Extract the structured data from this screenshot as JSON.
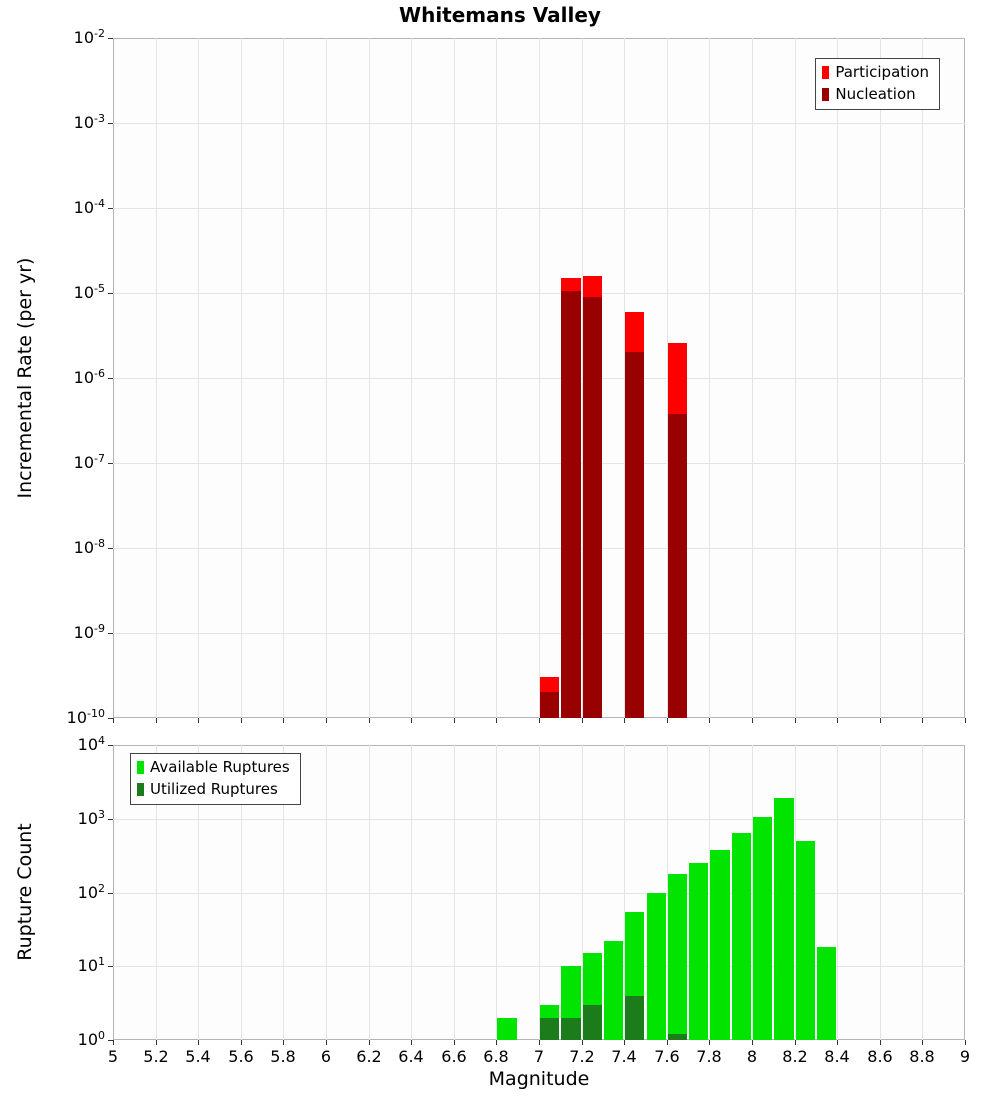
{
  "title": "Whitemans Valley",
  "colors": {
    "background": "#ffffff",
    "plot_background": "#fdfdfd",
    "gridline": "#e4e4e4",
    "axis_border": "#b5b5b5"
  },
  "chart_data": [
    {
      "type": "bar",
      "title": "Whitemans Valley",
      "ylabel": "Incremental Rate (per yr)",
      "xlabel": "",
      "yscale": "log",
      "ylim": [
        1e-10,
        0.01
      ],
      "xlim": [
        5,
        9
      ],
      "bin_width": 0.1,
      "grid": true,
      "y_tick_exponents": [
        -2,
        -3,
        -4,
        -5,
        -6,
        -7,
        -8,
        -9,
        -10
      ],
      "x_ticks": [
        {
          "v": 5,
          "label": "5"
        },
        {
          "v": 5.2,
          "label": "5.2"
        },
        {
          "v": 5.4,
          "label": "5.4"
        },
        {
          "v": 5.6,
          "label": "5.6"
        },
        {
          "v": 5.8,
          "label": "5.8"
        },
        {
          "v": 6,
          "label": "6"
        },
        {
          "v": 6.2,
          "label": "6.2"
        },
        {
          "v": 6.4,
          "label": "6.4"
        },
        {
          "v": 6.6,
          "label": "6.6"
        },
        {
          "v": 6.8,
          "label": "6.8"
        },
        {
          "v": 7,
          "label": "7"
        },
        {
          "v": 7.2,
          "label": "7.2"
        },
        {
          "v": 7.4,
          "label": "7.4"
        },
        {
          "v": 7.6,
          "label": "7.6"
        },
        {
          "v": 7.8,
          "label": "7.8"
        },
        {
          "v": 8,
          "label": "8"
        },
        {
          "v": 8.2,
          "label": "8.2"
        },
        {
          "v": 8.4,
          "label": "8.4"
        },
        {
          "v": 8.6,
          "label": "8.6"
        },
        {
          "v": 8.8,
          "label": "8.8"
        },
        {
          "v": 9,
          "label": "9"
        }
      ],
      "legend": {
        "position": "top-right",
        "entries": [
          {
            "label": "Participation",
            "color": "#ff0000"
          },
          {
            "label": "Nucleation",
            "color": "#990000"
          }
        ]
      },
      "series": [
        {
          "name": "Participation",
          "color": "#ff0000",
          "bins": [
            [
              7.0,
              3e-10
            ],
            [
              7.1,
              1.5e-05
            ],
            [
              7.2,
              1.6e-05
            ],
            [
              7.4,
              6e-06
            ],
            [
              7.6,
              2.6e-06
            ]
          ]
        },
        {
          "name": "Nucleation",
          "color": "#990000",
          "bins": [
            [
              7.0,
              2e-10
            ],
            [
              7.1,
              1.05e-05
            ],
            [
              7.2,
              9e-06
            ],
            [
              7.4,
              2e-06
            ],
            [
              7.6,
              3.8e-07
            ]
          ]
        }
      ]
    },
    {
      "type": "bar",
      "title": "",
      "ylabel": "Rupture Count",
      "xlabel": "Magnitude",
      "yscale": "log",
      "ylim": [
        1,
        10000
      ],
      "xlim": [
        5,
        9
      ],
      "bin_width": 0.1,
      "grid": true,
      "y_tick_exponents": [
        4,
        3,
        2,
        1,
        0
      ],
      "x_ticks": [
        {
          "v": 5,
          "label": "5"
        },
        {
          "v": 5.2,
          "label": "5.2"
        },
        {
          "v": 5.4,
          "label": "5.4"
        },
        {
          "v": 5.6,
          "label": "5.6"
        },
        {
          "v": 5.8,
          "label": "5.8"
        },
        {
          "v": 6,
          "label": "6"
        },
        {
          "v": 6.2,
          "label": "6.2"
        },
        {
          "v": 6.4,
          "label": "6.4"
        },
        {
          "v": 6.6,
          "label": "6.6"
        },
        {
          "v": 6.8,
          "label": "6.8"
        },
        {
          "v": 7,
          "label": "7"
        },
        {
          "v": 7.2,
          "label": "7.2"
        },
        {
          "v": 7.4,
          "label": "7.4"
        },
        {
          "v": 7.6,
          "label": "7.6"
        },
        {
          "v": 7.8,
          "label": "7.8"
        },
        {
          "v": 8,
          "label": "8"
        },
        {
          "v": 8.2,
          "label": "8.2"
        },
        {
          "v": 8.4,
          "label": "8.4"
        },
        {
          "v": 8.6,
          "label": "8.6"
        },
        {
          "v": 8.8,
          "label": "8.8"
        },
        {
          "v": 9,
          "label": "9"
        }
      ],
      "legend": {
        "position": "top-left",
        "entries": [
          {
            "label": "Available Ruptures",
            "color": "#00e400"
          },
          {
            "label": "Utilized Ruptures",
            "color": "#1c7c1c"
          }
        ]
      },
      "series": [
        {
          "name": "Available Ruptures",
          "color": "#00e400",
          "bins": [
            [
              6.8,
              2
            ],
            [
              7.0,
              3
            ],
            [
              7.1,
              10
            ],
            [
              7.2,
              15
            ],
            [
              7.3,
              22
            ],
            [
              7.4,
              55
            ],
            [
              7.5,
              100
            ],
            [
              7.6,
              180
            ],
            [
              7.7,
              250
            ],
            [
              7.8,
              380
            ],
            [
              7.9,
              650
            ],
            [
              8.0,
              1050
            ],
            [
              8.1,
              1900
            ],
            [
              8.2,
              500
            ],
            [
              8.3,
              18
            ]
          ]
        },
        {
          "name": "Utilized Ruptures",
          "color": "#1c7c1c",
          "bins": [
            [
              7.0,
              2
            ],
            [
              7.1,
              2
            ],
            [
              7.2,
              3
            ],
            [
              7.4,
              4
            ],
            [
              7.6,
              1
            ]
          ]
        }
      ]
    }
  ]
}
